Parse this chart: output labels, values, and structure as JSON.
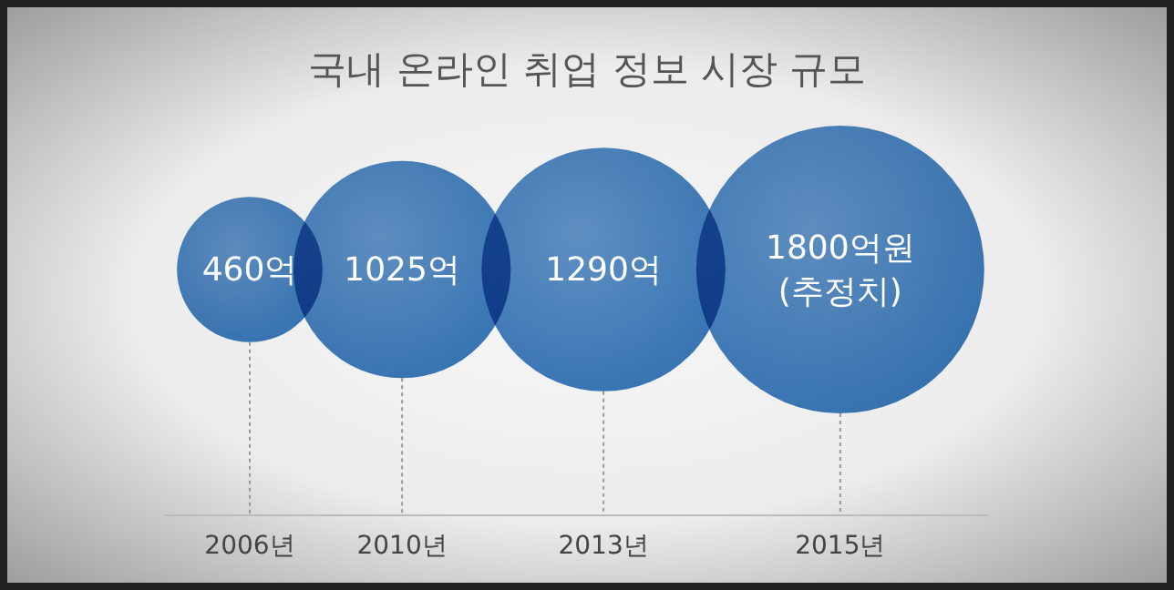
{
  "chart_data": {
    "type": "other",
    "title": "국내 온라인 취업 정보 시장 규모",
    "categories": [
      "2006년",
      "2010년",
      "2013년",
      "2015년"
    ],
    "values": [
      460,
      1025,
      1290,
      1800
    ],
    "value_labels": [
      "460억",
      "1025억",
      "1290억",
      "1800억원\n(추정치)"
    ],
    "color": "#2f72b8"
  }
}
